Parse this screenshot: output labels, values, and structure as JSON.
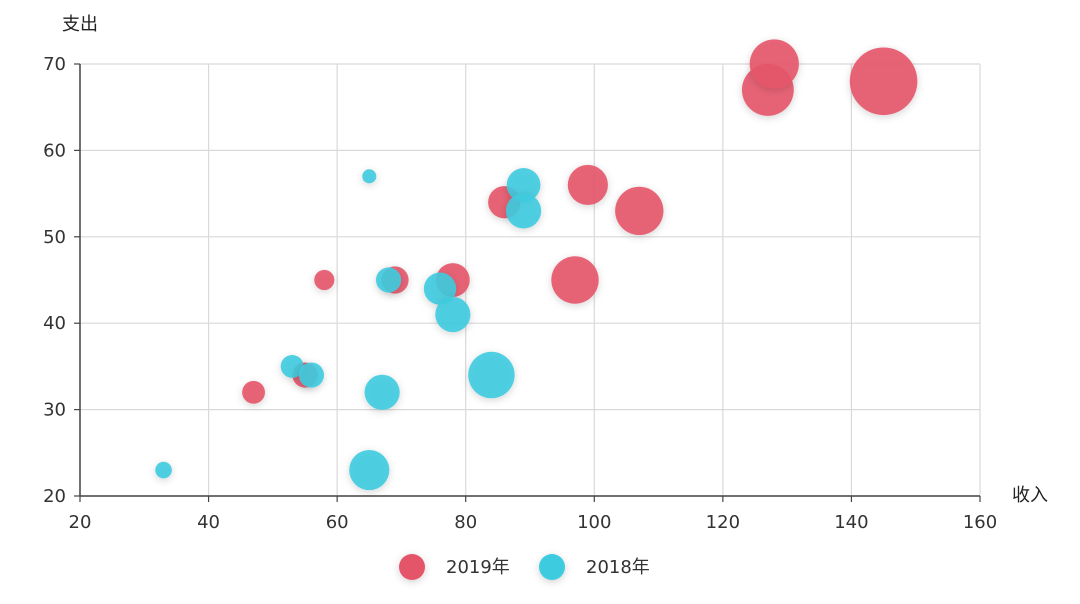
{
  "chart_data": {
    "type": "scatter",
    "xlabel": "收入",
    "ylabel": "支出",
    "xlim": [
      20,
      160
    ],
    "ylim": [
      20,
      70
    ],
    "x_ticks": [
      20,
      40,
      60,
      80,
      100,
      120,
      140,
      160
    ],
    "y_ticks": [
      20,
      30,
      40,
      50,
      60,
      70
    ],
    "grid": true,
    "legend_position": "bottom-center",
    "series": [
      {
        "name": "2019年",
        "color": "#e5556a",
        "points": [
          {
            "x": 47,
            "y": 32,
            "size": 3
          },
          {
            "x": 55,
            "y": 34,
            "size": 4
          },
          {
            "x": 58,
            "y": 45,
            "size": 2
          },
          {
            "x": 69,
            "y": 45,
            "size": 5
          },
          {
            "x": 78,
            "y": 45,
            "size": 9
          },
          {
            "x": 86,
            "y": 54,
            "size": 8
          },
          {
            "x": 97,
            "y": 45,
            "size": 21
          },
          {
            "x": 99,
            "y": 56,
            "size": 14
          },
          {
            "x": 107,
            "y": 53,
            "size": 22
          },
          {
            "x": 127,
            "y": 67,
            "size": 26
          },
          {
            "x": 128,
            "y": 70,
            "size": 23
          },
          {
            "x": 145,
            "y": 68,
            "size": 48
          }
        ]
      },
      {
        "name": "2018年",
        "color": "#3ecbdf",
        "points": [
          {
            "x": 33,
            "y": 23,
            "size": 1
          },
          {
            "x": 53,
            "y": 35,
            "size": 3
          },
          {
            "x": 56,
            "y": 34,
            "size": 4
          },
          {
            "x": 65,
            "y": 57,
            "size": 0.5
          },
          {
            "x": 65,
            "y": 23,
            "size": 14
          },
          {
            "x": 67,
            "y": 32,
            "size": 10
          },
          {
            "x": 68,
            "y": 45,
            "size": 4
          },
          {
            "x": 76,
            "y": 44,
            "size": 8
          },
          {
            "x": 78,
            "y": 41,
            "size": 10
          },
          {
            "x": 84,
            "y": 34,
            "size": 20
          },
          {
            "x": 89,
            "y": 56,
            "size": 9
          },
          {
            "x": 89,
            "y": 53,
            "size": 10
          }
        ]
      }
    ]
  }
}
